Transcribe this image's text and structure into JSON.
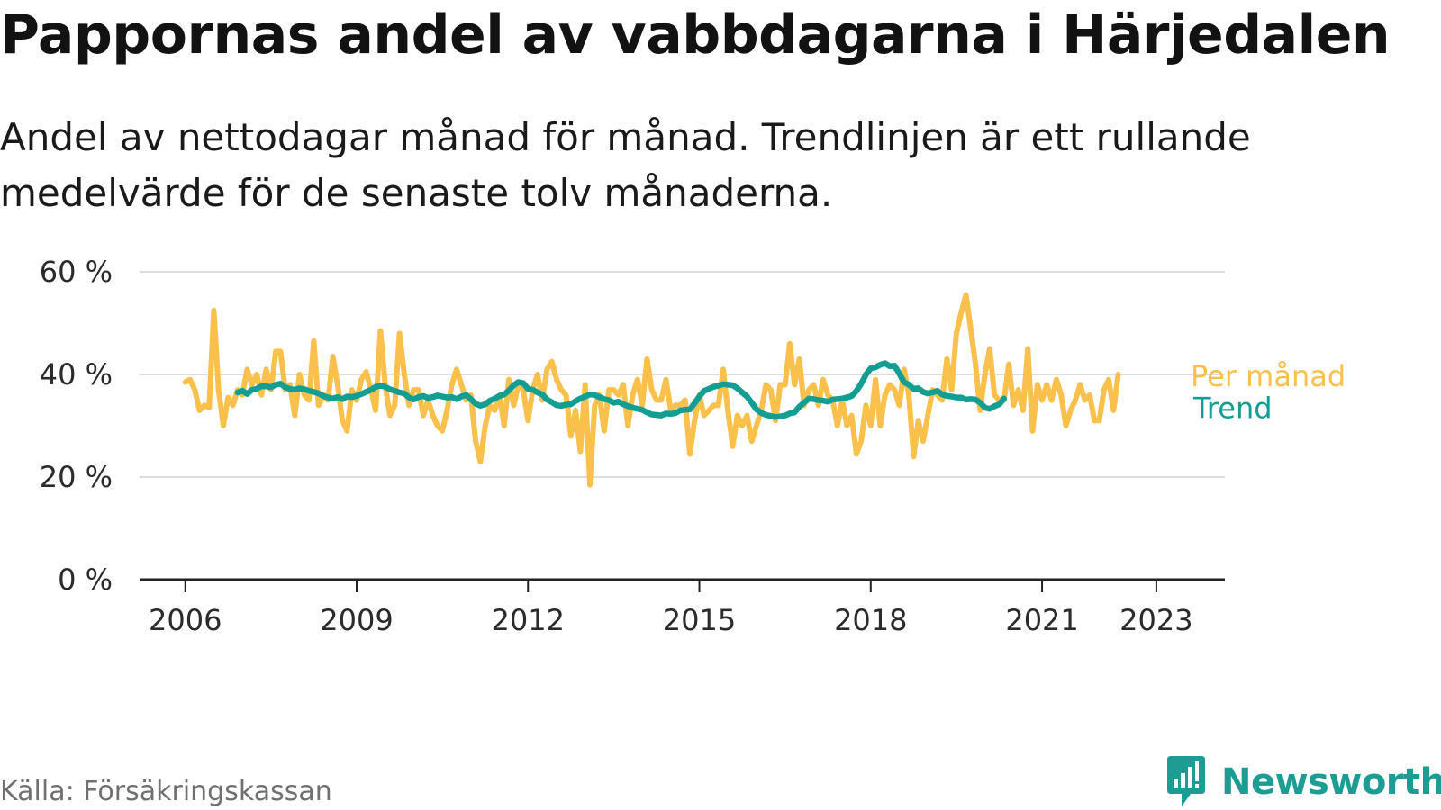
{
  "header": {
    "title": "Pappornas andel av vabbdagarna i Härjedalen",
    "subtitle": "Andel av nettodagar månad för månad. Trendlinjen är ett rullande medelvärde för de senaste tolv månaderna."
  },
  "footer": {
    "source": "Källa: Försäkringskassan",
    "brand": "Newsworthy",
    "brand_icon": "newsworthy-logo-icon"
  },
  "colors": {
    "monthly": "#f9c04c",
    "trend": "#129e93",
    "grid": "#dedede",
    "axis": "#222222",
    "brand": "#1c9c92"
  },
  "chart_data": {
    "type": "line",
    "title": "Pappornas andel av vabbdagarna i Härjedalen",
    "xlabel": "",
    "ylabel": "",
    "x_range": [
      2005.2,
      2024.2
    ],
    "ylim": [
      0,
      60
    ],
    "y_ticks": [
      0,
      20,
      40,
      60
    ],
    "y_tick_labels": [
      "0 %",
      "20 %",
      "40 %",
      "60 %"
    ],
    "x_ticks": [
      2006,
      2009,
      2012,
      2015,
      2018,
      2021,
      2023
    ],
    "x_tick_labels": [
      "2006",
      "2009",
      "2012",
      "2015",
      "2018",
      "2021",
      "2023"
    ],
    "grid": true,
    "legend": "inline-right",
    "series": [
      {
        "name": "Per månad",
        "start": 2006.0,
        "step": 0.0833333,
        "values": [
          38.5,
          39,
          37,
          33,
          34,
          33.5,
          52.5,
          37,
          30,
          35.5,
          34,
          37,
          36,
          41,
          38,
          40,
          36,
          41,
          37,
          44.5,
          44.5,
          37,
          38,
          32,
          40,
          36,
          35,
          46.5,
          34,
          36,
          35,
          43.5,
          38,
          31,
          29,
          37,
          35,
          39,
          40.5,
          37,
          33,
          48.5,
          38,
          32,
          34,
          48,
          40,
          34,
          37,
          37,
          32,
          35,
          32,
          30,
          29,
          33,
          38,
          41,
          38,
          35,
          36,
          27,
          23,
          30,
          34,
          33,
          36,
          30,
          39,
          34,
          38,
          37,
          31,
          37,
          40,
          35,
          41,
          42.5,
          39,
          37,
          36,
          28,
          33,
          25,
          38,
          18.5,
          34,
          36,
          29,
          37,
          37,
          36,
          38,
          30,
          36,
          39,
          34,
          43,
          37,
          35,
          35,
          39,
          33,
          34,
          34,
          35,
          24.5,
          31,
          36,
          32,
          33,
          34,
          34,
          41,
          33,
          26,
          32,
          30,
          32,
          27,
          30,
          33,
          38,
          37,
          31,
          38,
          38,
          46,
          38,
          43,
          34,
          37,
          38,
          34,
          39,
          36,
          35,
          30,
          35,
          30,
          32,
          24.5,
          27,
          34,
          30,
          39,
          30,
          36,
          38,
          37,
          34,
          41,
          36,
          24,
          31,
          27,
          32,
          37,
          36,
          35,
          43,
          37,
          48,
          52,
          55.5,
          49,
          42,
          33,
          40,
          45,
          36,
          35,
          35,
          42,
          34,
          37,
          33,
          45,
          29,
          38,
          35,
          38,
          35,
          39,
          36,
          30,
          33,
          35,
          38,
          35,
          36,
          31,
          31,
          37,
          39,
          33,
          40
        ]
      },
      {
        "name": "Trend",
        "start": 2006.917,
        "step": 0.0833333,
        "values": [
          36.5,
          36.8,
          36.2,
          37,
          37.2,
          37.7,
          37.7,
          37.5,
          38,
          38.2,
          37.5,
          37.2,
          37,
          37.3,
          37.1,
          36.8,
          36.6,
          36.3,
          35.8,
          35.5,
          35.3,
          35.6,
          35.2,
          35.7,
          35.6,
          35.8,
          36.2,
          36.6,
          37,
          37.6,
          37.8,
          37.6,
          37.1,
          36.8,
          36.5,
          36.3,
          35.5,
          35.1,
          35.6,
          35.8,
          35.4,
          35.6,
          35.9,
          35.7,
          35.5,
          35.6,
          35.2,
          35.7,
          36,
          35.2,
          34.3,
          33.9,
          34.2,
          34.9,
          35.3,
          35.8,
          36.1,
          36.9,
          37.9,
          38.5,
          38.3,
          37.2,
          37,
          36.5,
          36.1,
          35.1,
          34.6,
          34,
          33.9,
          34.1,
          34.2,
          34.8,
          35.3,
          35.7,
          36.1,
          36,
          35.6,
          35.2,
          35,
          34.5,
          34.7,
          34.2,
          33.8,
          33.5,
          33.3,
          33.1,
          32.6,
          32.2,
          32.1,
          32,
          32.4,
          32.3,
          32.5,
          33,
          33.1,
          33.2,
          34.4,
          35.7,
          36.8,
          37.2,
          37.6,
          37.8,
          38.1,
          38,
          37.9,
          37.3,
          36.5,
          35.7,
          34.5,
          33.2,
          32.5,
          32.1,
          31.9,
          31.7,
          31.8,
          32,
          32.4,
          32.6,
          33.7,
          34.5,
          35.3,
          35.2,
          35,
          34.9,
          34.7,
          35.1,
          35.2,
          35.3,
          35.5,
          35.8,
          36.8,
          38.2,
          40,
          41.2,
          41.4,
          41.9,
          42.2,
          41.6,
          41.7,
          40.2,
          38.5,
          38,
          37.2,
          37.3,
          36.6,
          36.3,
          36.5,
          36.8,
          36.1,
          35.8,
          35.7,
          35.5,
          35.5,
          35.1,
          35.2,
          35.1,
          34.5,
          33.5,
          33.3,
          33.8,
          34.2,
          35.3
        ]
      }
    ]
  }
}
